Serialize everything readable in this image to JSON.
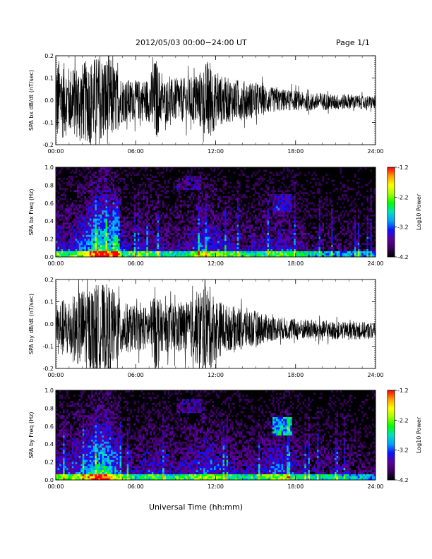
{
  "header": {
    "title": "2012/05/03  00:00−24:00 UT",
    "page": "Page 1/1"
  },
  "footer": {
    "xlabel": "Universal Time (hh:mm)"
  },
  "colorscale": {
    "colors": [
      "#000000",
      "#3a0060",
      "#5a00a0",
      "#1010ff",
      "#00a0ff",
      "#00e0c0",
      "#00ff00",
      "#a0ff00",
      "#ffff00",
      "#ffa000",
      "#ff0000"
    ]
  },
  "chart_data": [
    {
      "type": "line",
      "panel": "bx-waveform",
      "ylabel": "SPA bx dB/dt (nT/sec)",
      "xlim": [
        "00:00",
        "24:00"
      ],
      "ylim": [
        -0.2,
        0.2
      ],
      "x_ticks": [
        "00:00",
        "06:00",
        "12:00",
        "18:00",
        "24:00"
      ],
      "y_ticks": [
        "-0.2",
        "-0.1",
        "0.0",
        "0.1",
        "0.2"
      ],
      "series": [
        {
          "x_hours": [
            0,
            1,
            2,
            3,
            3.5,
            4,
            5,
            6,
            7,
            7.5,
            8,
            9,
            10,
            11,
            11.5,
            12,
            13,
            14,
            15,
            16,
            17,
            18,
            19,
            20,
            21,
            22,
            23,
            24
          ],
          "amplitude": [
            0.2,
            0.15,
            0.18,
            0.2,
            0.2,
            0.2,
            0.1,
            0.09,
            0.1,
            0.2,
            0.09,
            0.1,
            0.1,
            0.14,
            0.2,
            0.12,
            0.1,
            0.09,
            0.08,
            0.06,
            0.05,
            0.045,
            0.04,
            0.04,
            0.035,
            0.035,
            0.03,
            0.03
          ],
          "offset": [
            0.0,
            0.0,
            -0.01,
            0.0,
            0.0,
            0.0,
            0.0,
            0.0,
            0.0,
            0.0,
            0.0,
            0.0,
            0.0,
            0.0,
            0.0,
            0.0,
            0.0,
            0.0,
            0.0,
            0.0,
            0.0,
            0.0,
            -0.01,
            -0.005,
            -0.01,
            -0.005,
            -0.01,
            -0.01
          ]
        }
      ]
    },
    {
      "type": "heatmap",
      "panel": "bx-spectrogram",
      "ylabel": "SPA bx Freq (Hz)",
      "colorbar_label": "Log10 Power",
      "xlim": [
        "00:00",
        "24:00"
      ],
      "ylim": [
        0.0,
        1.0
      ],
      "clim": [
        -4.2,
        -1.2
      ],
      "x_ticks": [
        "00:00",
        "06:00",
        "12:00",
        "18:00",
        "24:00"
      ],
      "y_ticks": [
        "0.0",
        "0.2",
        "0.4",
        "0.6",
        "0.8",
        "1.0"
      ],
      "colorbar_ticks": [
        "-1.2",
        "-2.2",
        "-3.2",
        "-4.2"
      ],
      "time_profile_hours": [
        0,
        1,
        2,
        3,
        3.5,
        4,
        5,
        6,
        7,
        8,
        9,
        10,
        11,
        12,
        13,
        14,
        15,
        16,
        17,
        18,
        19,
        20,
        21,
        22,
        23,
        24
      ],
      "time_profile_level": [
        0.45,
        0.4,
        0.55,
        0.75,
        0.8,
        0.75,
        0.4,
        0.35,
        0.4,
        0.35,
        0.35,
        0.38,
        0.5,
        0.45,
        0.38,
        0.35,
        0.35,
        0.4,
        0.42,
        0.38,
        0.3,
        0.28,
        0.25,
        0.28,
        0.22,
        0.2
      ]
    },
    {
      "type": "line",
      "panel": "by-waveform",
      "ylabel": "SPA by dB/dt (nT/sec)",
      "xlim": [
        "00:00",
        "24:00"
      ],
      "ylim": [
        -0.2,
        0.2
      ],
      "x_ticks": [
        "00:00",
        "06:00",
        "12:00",
        "18:00",
        "24:00"
      ],
      "y_ticks": [
        "-0.2",
        "-0.1",
        "0.0",
        "0.1",
        "0.2"
      ],
      "series": [
        {
          "x_hours": [
            0,
            1,
            2,
            3,
            3.5,
            4,
            5,
            6,
            7,
            7.5,
            8,
            9,
            10,
            11,
            11.5,
            12,
            13,
            14,
            15,
            16,
            17,
            18,
            19,
            20,
            21,
            22,
            23,
            24
          ],
          "amplitude": [
            0.12,
            0.14,
            0.18,
            0.2,
            0.2,
            0.2,
            0.12,
            0.1,
            0.1,
            0.2,
            0.1,
            0.12,
            0.12,
            0.2,
            0.2,
            0.14,
            0.1,
            0.1,
            0.08,
            0.06,
            0.05,
            0.05,
            0.045,
            0.045,
            0.04,
            0.04,
            0.04,
            0.035
          ],
          "offset": [
            -0.02,
            -0.02,
            -0.02,
            -0.02,
            -0.02,
            -0.02,
            -0.02,
            -0.02,
            -0.02,
            -0.02,
            -0.02,
            -0.02,
            -0.02,
            -0.02,
            -0.02,
            -0.02,
            -0.02,
            -0.02,
            -0.02,
            -0.02,
            -0.02,
            -0.025,
            -0.025,
            -0.03,
            -0.03,
            -0.03,
            -0.03,
            -0.03
          ]
        }
      ]
    },
    {
      "type": "heatmap",
      "panel": "by-spectrogram",
      "ylabel": "SPA by Freq (Hz)",
      "colorbar_label": "Log10 Power",
      "xlim": [
        "00:00",
        "24:00"
      ],
      "ylim": [
        0.0,
        1.0
      ],
      "clim": [
        -4.2,
        -1.2
      ],
      "x_ticks": [
        "00:00",
        "06:00",
        "12:00",
        "18:00",
        "24:00"
      ],
      "y_ticks": [
        "0.0",
        "0.2",
        "0.4",
        "0.6",
        "0.8",
        "1.0"
      ],
      "colorbar_ticks": [
        "-1.2",
        "-2.2",
        "-3.2",
        "-4.2"
      ],
      "time_profile_hours": [
        0,
        1,
        2,
        3,
        3.5,
        4,
        5,
        6,
        7,
        8,
        9,
        10,
        11,
        12,
        13,
        14,
        15,
        16,
        17,
        18,
        19,
        20,
        21,
        22,
        23,
        24
      ],
      "time_profile_level": [
        0.45,
        0.45,
        0.55,
        0.72,
        0.78,
        0.72,
        0.42,
        0.35,
        0.42,
        0.38,
        0.36,
        0.4,
        0.5,
        0.45,
        0.38,
        0.35,
        0.35,
        0.45,
        0.5,
        0.38,
        0.32,
        0.32,
        0.3,
        0.3,
        0.25,
        0.22
      ]
    }
  ]
}
